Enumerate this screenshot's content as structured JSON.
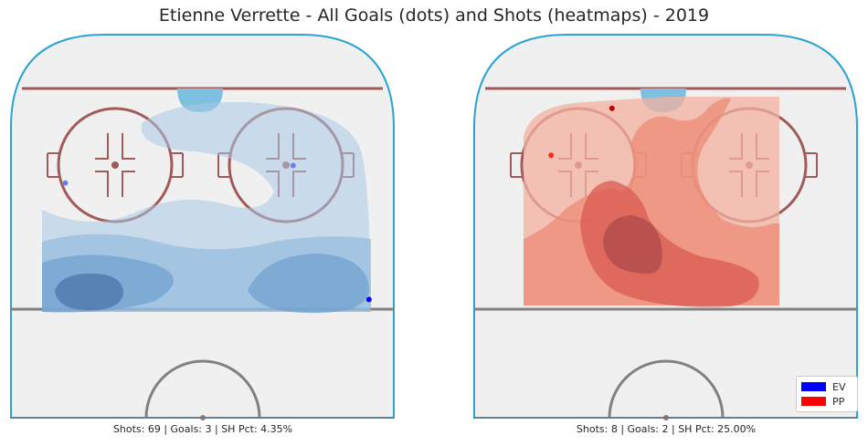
{
  "chart_data": [
    {
      "type": "scatter",
      "title": "Etienne Verrette - All Goals (dots) and Shots (heatmaps) - 2019",
      "caption": "Shots: 69 | Goals: 3 | SH Pct: 4.35%",
      "situation": "EV",
      "heatmap_color": "#2f7bbd",
      "goals": [
        {
          "x": 23.4,
          "y": 73.7
        },
        {
          "x": 28.7,
          "y": 14.2
        },
        {
          "x": 64.1,
          "y": 93.5
        }
      ]
    },
    {
      "type": "scatter",
      "caption": "Shots: 8 | Goals: 2 | SH Pct: 25.00%",
      "situation": "PP",
      "heatmap_color": "#e03b2c",
      "goals": [
        {
          "x": 20.3,
          "y": 20.1
        },
        {
          "x": 6.0,
          "y": 36.0
        }
      ]
    }
  ],
  "legend": [
    {
      "label": "EV",
      "color": "#0000ff"
    },
    {
      "label": "PP",
      "color": "#ff0000"
    }
  ]
}
